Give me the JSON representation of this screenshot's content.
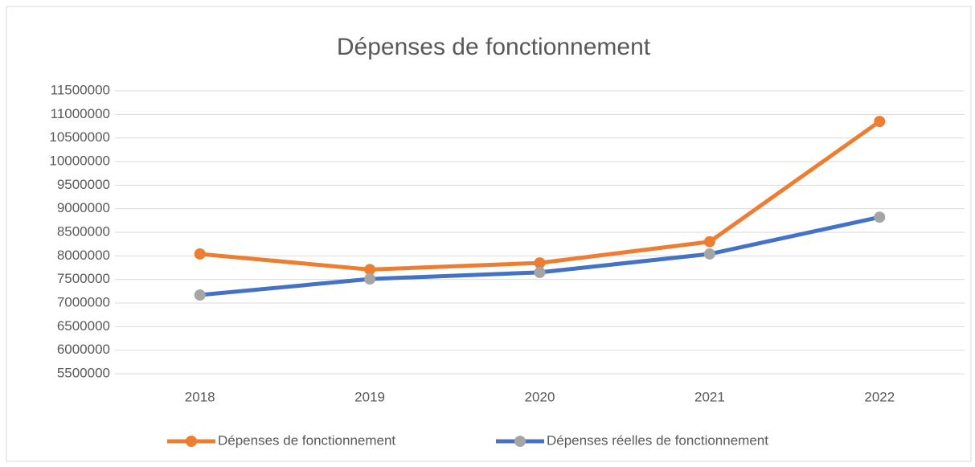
{
  "chart_data": {
    "type": "line",
    "title": "Dépenses de fonctionnement",
    "categories": [
      "2018",
      "2019",
      "2020",
      "2021",
      "2022"
    ],
    "series": [
      {
        "name": "Dépenses de fonctionnement",
        "color": "#ed7d31",
        "marker_color": "#ed7d31",
        "values": [
          8040000,
          7710000,
          7850000,
          8300000,
          10850000
        ]
      },
      {
        "name": "Dépenses réelles de fonctionnement",
        "color": "#4472c4",
        "marker_color": "#a5a5a5",
        "values": [
          7170000,
          7510000,
          7650000,
          8040000,
          8820000
        ]
      }
    ],
    "ylim": [
      5500000,
      11500000
    ],
    "yticks": [
      5500000,
      6000000,
      6500000,
      7000000,
      7500000,
      8000000,
      8500000,
      9000000,
      9500000,
      10000000,
      10500000,
      11000000,
      11500000
    ],
    "grid": true,
    "legend": "bottom"
  }
}
